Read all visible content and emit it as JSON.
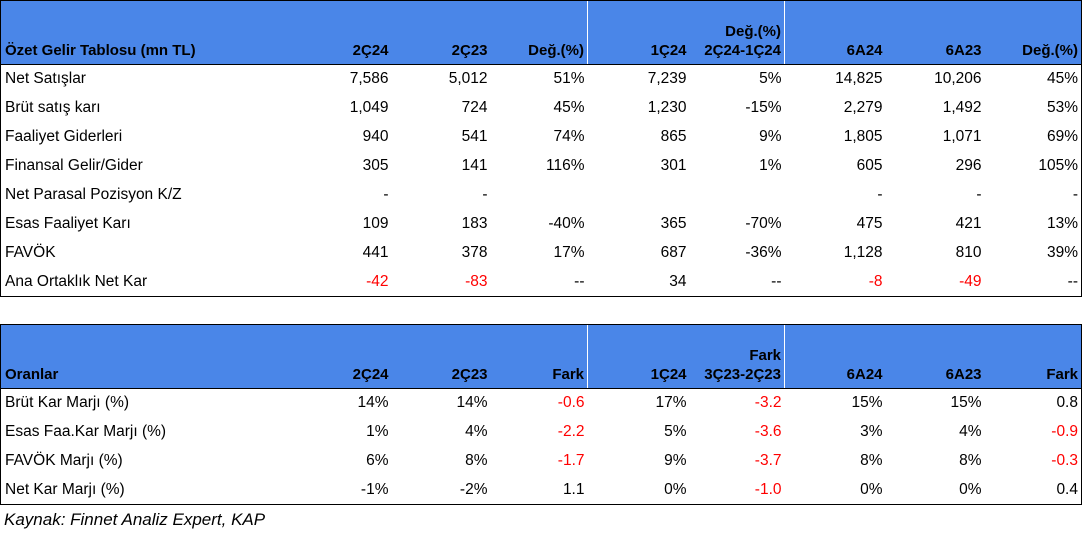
{
  "income": {
    "headers": [
      "Özet Gelir Tablosu (mn TL)",
      "2Ç24",
      "2Ç23",
      "Değ.(%)",
      "1Ç24",
      "Değ.(%)\n2Ç24-1Ç24",
      "6A24",
      "6A23",
      "Değ.(%)"
    ],
    "rows": [
      {
        "label": "Net Satışlar",
        "values": [
          "7,586",
          "5,012",
          "51%",
          "7,239",
          "5%",
          "14,825",
          "10,206",
          "45%"
        ],
        "neg": [
          false,
          false,
          false,
          false,
          false,
          false,
          false,
          false
        ]
      },
      {
        "label": "Brüt satış karı",
        "values": [
          "1,049",
          "724",
          "45%",
          "1,230",
          "-15%",
          "2,279",
          "1,492",
          "53%"
        ],
        "neg": [
          false,
          false,
          false,
          false,
          false,
          false,
          false,
          false
        ]
      },
      {
        "label": "Faaliyet Giderleri",
        "values": [
          "940",
          "541",
          "74%",
          "865",
          "9%",
          "1,805",
          "1,071",
          "69%"
        ],
        "neg": [
          false,
          false,
          false,
          false,
          false,
          false,
          false,
          false
        ]
      },
      {
        "label": "Finansal Gelir/Gider",
        "values": [
          "305",
          "141",
          "116%",
          "301",
          "1%",
          "605",
          "296",
          "105%"
        ],
        "neg": [
          false,
          false,
          false,
          false,
          false,
          false,
          false,
          false
        ]
      },
      {
        "label": "Net Parasal Pozisyon K/Z",
        "values": [
          "-",
          "-",
          "",
          "",
          "",
          "-",
          "-",
          "-"
        ],
        "neg": [
          false,
          false,
          false,
          false,
          false,
          false,
          false,
          false
        ]
      },
      {
        "label": "Esas Faaliyet Karı",
        "values": [
          "109",
          "183",
          "-40%",
          "365",
          "-70%",
          "475",
          "421",
          "13%"
        ],
        "neg": [
          false,
          false,
          false,
          false,
          false,
          false,
          false,
          false
        ]
      },
      {
        "label": "FAVÖK",
        "values": [
          "441",
          "378",
          "17%",
          "687",
          "-36%",
          "1,128",
          "810",
          "39%"
        ],
        "neg": [
          false,
          false,
          false,
          false,
          false,
          false,
          false,
          false
        ]
      },
      {
        "label": "Ana Ortaklık Net Kar",
        "values": [
          "-42",
          "-83",
          "--",
          "34",
          "--",
          "-8",
          "-49",
          "--"
        ],
        "neg": [
          true,
          true,
          false,
          false,
          false,
          true,
          true,
          false
        ]
      }
    ]
  },
  "ratios": {
    "headers": [
      "Oranlar",
      "2Ç24",
      "2Ç23",
      "Fark",
      "1Ç24",
      "Fark\n3Ç23-2Ç23",
      "6A24",
      "6A23",
      "Fark"
    ],
    "rows": [
      {
        "label": "Brüt Kar Marjı (%)",
        "values": [
          "14%",
          "14%",
          "-0.6",
          "17%",
          "-3.2",
          "15%",
          "15%",
          "0.8"
        ],
        "neg": [
          false,
          false,
          true,
          false,
          true,
          false,
          false,
          false
        ]
      },
      {
        "label": "Esas Faa.Kar Marjı (%)",
        "values": [
          "1%",
          "4%",
          "-2.2",
          "5%",
          "-3.6",
          "3%",
          "4%",
          "-0.9"
        ],
        "neg": [
          false,
          false,
          true,
          false,
          true,
          false,
          false,
          true
        ]
      },
      {
        "label": "FAVÖK Marjı (%)",
        "values": [
          "6%",
          "8%",
          "-1.7",
          "9%",
          "-3.7",
          "8%",
          "8%",
          "-0.3"
        ],
        "neg": [
          false,
          false,
          true,
          false,
          true,
          false,
          false,
          true
        ]
      },
      {
        "label": "Net Kar Marjı (%)",
        "values": [
          "-1%",
          "-2%",
          "1.1",
          "0%",
          "-1.0",
          "0%",
          "0%",
          "0.4"
        ],
        "neg": [
          false,
          false,
          false,
          false,
          true,
          false,
          false,
          false
        ]
      }
    ]
  },
  "source": "Kaynak: Finnet Analiz Expert, KAP"
}
